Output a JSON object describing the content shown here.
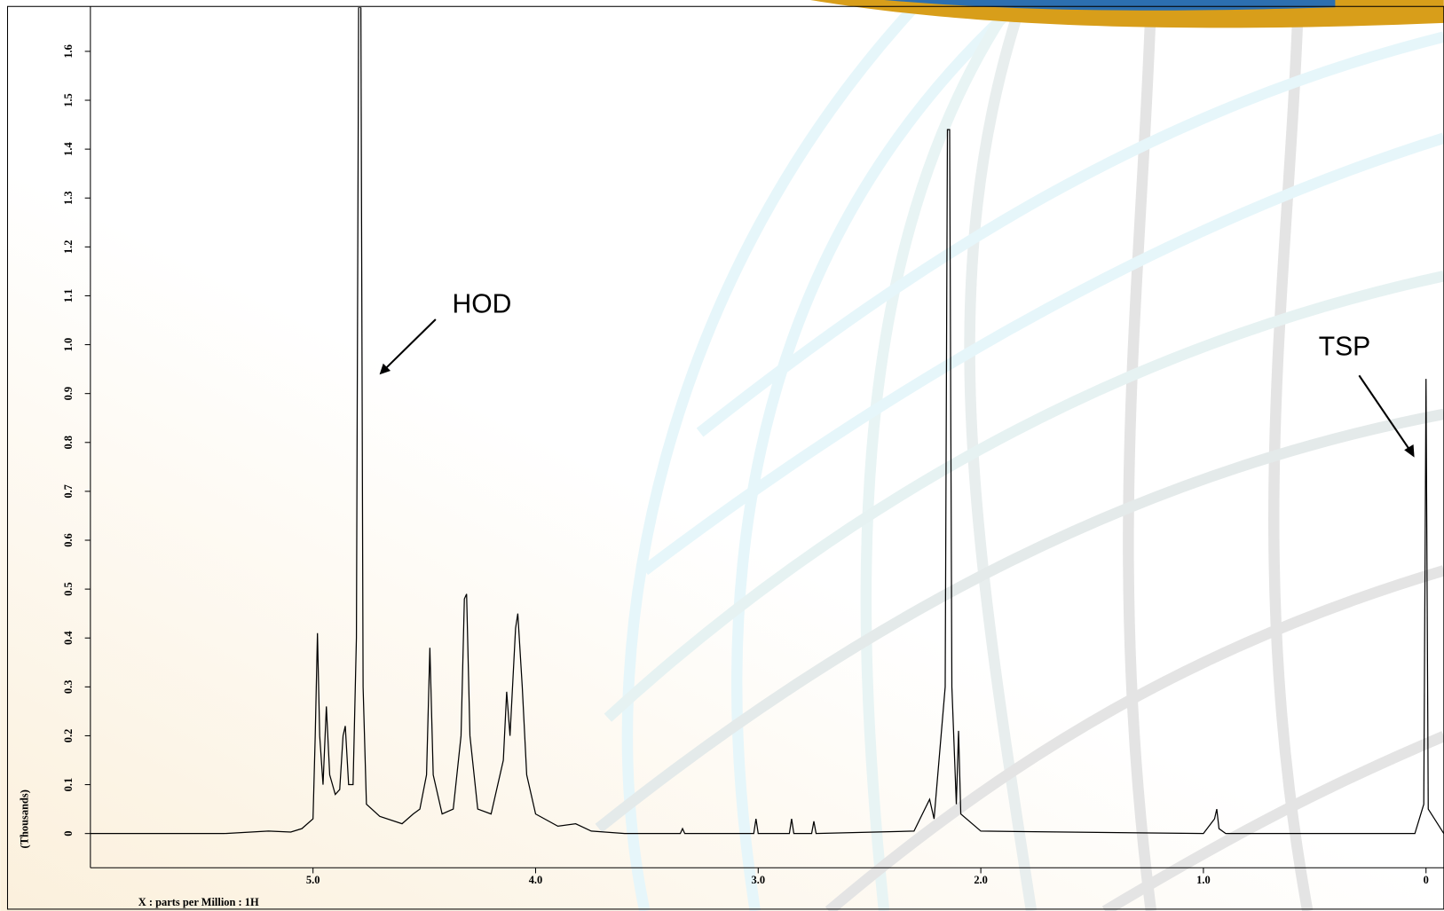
{
  "chart_data": {
    "type": "line",
    "x_label": "X : parts per Million : 1H",
    "y_label": "(Thousands)",
    "annotations": [
      "HOD",
      "TSP"
    ],
    "xlim": [
      6.0,
      -0.08
    ],
    "ylim": [
      -0.07,
      1.69
    ],
    "xticks": [
      {
        "value": 5,
        "label": "5.0"
      },
      {
        "value": 4,
        "label": "4.0"
      },
      {
        "value": 3,
        "label": "3.0"
      },
      {
        "value": 2,
        "label": "2.0"
      },
      {
        "value": 1,
        "label": "1.0"
      },
      0
    ],
    "yticks": [
      0,
      0.1,
      0.2,
      0.3,
      0.4,
      0.5,
      0.6,
      0.7,
      0.8,
      0.9,
      {
        "value": 1,
        "label": "1.0"
      },
      1.1,
      1.2,
      1.3,
      1.4,
      1.5,
      1.6
    ],
    "series": [
      {
        "color": "#000000",
        "x": [
          6.0,
          5.4,
          5.2,
          5.1,
          5.05,
          5.0,
          4.99,
          4.98,
          4.97,
          4.955,
          4.94,
          4.925,
          4.9,
          4.88,
          4.865,
          4.855,
          4.84,
          4.82,
          4.805,
          4.795,
          4.785,
          4.775,
          4.76,
          4.7,
          4.6,
          4.55,
          4.52,
          4.49,
          4.475,
          4.46,
          4.42,
          4.37,
          4.335,
          4.32,
          4.31,
          4.295,
          4.26,
          4.2,
          4.145,
          4.13,
          4.115,
          4.09,
          4.08,
          4.06,
          4.04,
          4.0,
          3.9,
          3.82,
          3.75,
          3.6,
          3.35,
          3.34,
          3.33,
          3.02,
          3.01,
          3.0,
          2.86,
          2.85,
          2.84,
          2.76,
          2.75,
          2.74,
          2.3,
          2.23,
          2.21,
          2.16,
          2.15,
          2.14,
          2.13,
          2.11,
          2.1,
          2.09,
          2.0,
          1.0,
          0.95,
          0.94,
          0.93,
          0.9,
          0.05,
          0.01,
          0.0,
          -0.01,
          -0.08
        ],
        "values": [
          0,
          0,
          0.005,
          0.003,
          0.01,
          0.03,
          0.2,
          0.41,
          0.2,
          0.1,
          0.26,
          0.12,
          0.08,
          0.09,
          0.2,
          0.22,
          0.1,
          0.1,
          0.4,
          1.69,
          1.69,
          0.3,
          0.06,
          0.035,
          0.02,
          0.04,
          0.05,
          0.12,
          0.38,
          0.12,
          0.04,
          0.05,
          0.2,
          0.48,
          0.49,
          0.2,
          0.05,
          0.04,
          0.15,
          0.29,
          0.2,
          0.42,
          0.45,
          0.3,
          0.12,
          0.04,
          0.015,
          0.02,
          0.005,
          0,
          0,
          0.01,
          0,
          0,
          0.03,
          0,
          0,
          0.03,
          0,
          0,
          0.025,
          0,
          0.005,
          0.07,
          0.03,
          0.3,
          1.44,
          1.44,
          0.3,
          0.06,
          0.21,
          0.04,
          0.005,
          0,
          0.03,
          0.05,
          0.01,
          0,
          0,
          0.06,
          0.93,
          0.05,
          0
        ]
      }
    ]
  }
}
